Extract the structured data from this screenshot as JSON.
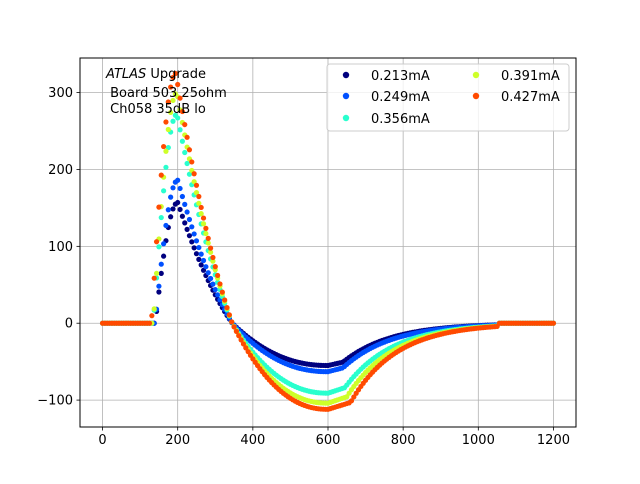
{
  "chart_data": {
    "type": "scatter",
    "title": "",
    "xlabel": "",
    "ylabel": "",
    "xlim": [
      -60,
      1260
    ],
    "ylim": [
      -135,
      345
    ],
    "grid": true,
    "legend_position": "top-right",
    "legend_columns": 2,
    "annotation": {
      "italic_part": "ATLAS",
      "rest_line1": " Upgrade",
      "line2": " Board 503 25ohm",
      "line3": " Ch058 35dB lo"
    },
    "x_ticks": [
      0,
      200,
      400,
      600,
      800,
      1000,
      1200
    ],
    "x_tick_labels": [
      "0",
      "200",
      "400",
      "600",
      "800",
      "1000",
      "1200"
    ],
    "y_ticks": [
      -100,
      0,
      100,
      200,
      300
    ],
    "y_tick_labels": [
      "−100",
      "0",
      "100",
      "200",
      "300"
    ],
    "x_sampling": {
      "start": 0,
      "end": 1200,
      "step": 6.25
    },
    "series": [
      {
        "name": "0.213mA",
        "color": "#00007f",
        "peak": 157,
        "trough": -55,
        "pulse_start": 140,
        "peak_x": 200,
        "zero_cross": 345,
        "trough_x": 600,
        "trough_end": 640,
        "tail_end": 1050
      },
      {
        "name": "0.249mA",
        "color": "#0050ff",
        "peak": 186,
        "trough": -63,
        "pulse_start": 140,
        "peak_x": 200,
        "zero_cross": 345,
        "trough_x": 600,
        "trough_end": 640,
        "tail_end": 1050
      },
      {
        "name": "0.356mA",
        "color": "#29ffce",
        "peak": 272,
        "trough": -91,
        "pulse_start": 135,
        "peak_x": 198,
        "zero_cross": 345,
        "trough_x": 600,
        "trough_end": 645,
        "tail_end": 1050
      },
      {
        "name": "0.391mA",
        "color": "#ceff29",
        "peak": 300,
        "trough": -104,
        "pulse_start": 135,
        "peak_x": 198,
        "zero_cross": 345,
        "trough_x": 600,
        "trough_end": 650,
        "tail_end": 1050
      },
      {
        "name": "0.427mA",
        "color": "#ff4a00",
        "peak": 325,
        "trough": -112,
        "pulse_start": 130,
        "peak_x": 195,
        "zero_cross": 345,
        "trough_x": 600,
        "trough_end": 660,
        "tail_end": 1050
      }
    ]
  }
}
